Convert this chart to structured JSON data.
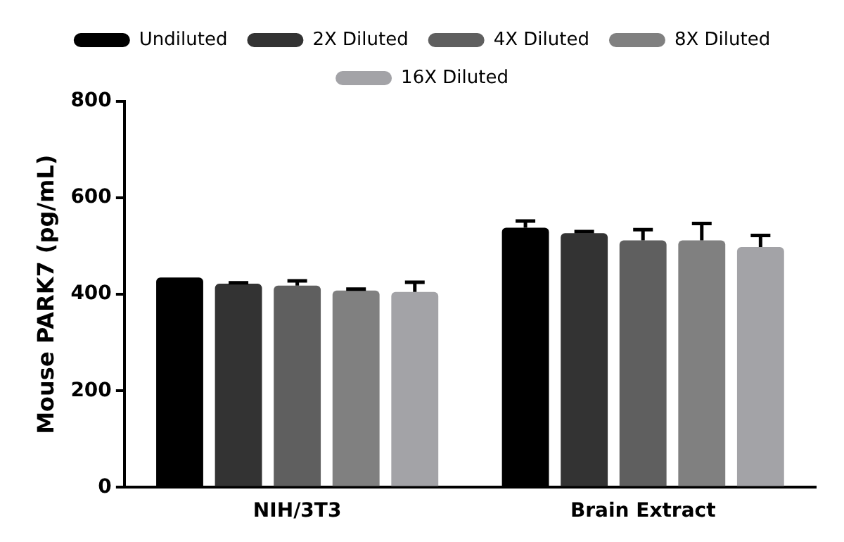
{
  "chart_data": {
    "type": "bar",
    "ylabel": "Mouse PARK7 (pg/mL)",
    "categories": [
      "NIH/3T3",
      "Brain Extract"
    ],
    "series": [
      {
        "name": "Undiluted",
        "color": "#000000",
        "values": [
          435,
          538
        ],
        "errors": [
          null,
          [
            538,
            552
          ]
        ]
      },
      {
        "name": "2X Diluted",
        "color": "#333333",
        "values": [
          422,
          527
        ],
        "errors": [
          [
            422,
            424
          ],
          [
            527,
            530
          ]
        ]
      },
      {
        "name": "4X Diluted",
        "color": "#5f5f5f",
        "values": [
          418,
          512
        ],
        "errors": [
          [
            418,
            428
          ],
          [
            512,
            534
          ]
        ]
      },
      {
        "name": "8X Diluted",
        "color": "#808080",
        "values": [
          408,
          512
        ],
        "errors": [
          [
            408,
            411
          ],
          [
            512,
            547
          ]
        ]
      },
      {
        "name": "16X Diluted",
        "color": "#a3a3a7",
        "values": [
          405,
          498
        ],
        "errors": [
          [
            405,
            425
          ],
          [
            498,
            522
          ]
        ]
      }
    ],
    "ylim": [
      0,
      800
    ],
    "yticks": [
      0,
      200,
      400,
      600,
      800
    ],
    "grid": false,
    "legend": "top"
  }
}
